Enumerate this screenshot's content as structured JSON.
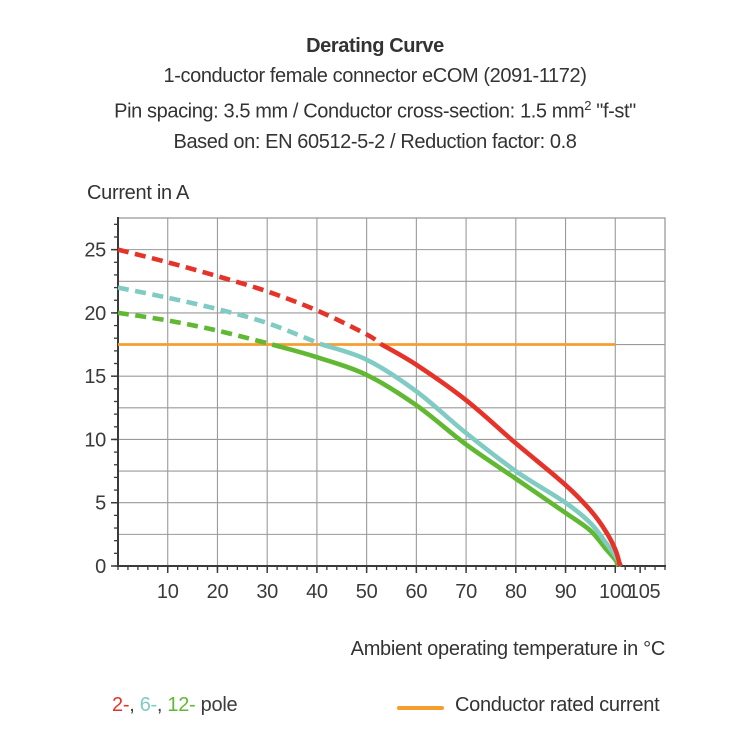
{
  "header": {
    "line1": "Derating Curve",
    "line2": "1-conductor female connector eCOM (2091-1172)",
    "line3_pre": "Pin spacing: 3.5 mm / Conductor cross-section: 1.5 mm",
    "line3_sup": "2",
    "line3_post": " \"f-st\"",
    "line4": "Based on: EN 60512-5-2 / Reduction factor: 0.8"
  },
  "chart_data": {
    "type": "line",
    "title": "Derating Curve",
    "xlabel": "Ambient operating temperature in °C",
    "ylabel": "Current in A",
    "xlim": [
      0,
      110
    ],
    "ylim": [
      0,
      27.5
    ],
    "x_gridline_step": 10,
    "y_gridline_step": 2.5,
    "x_major_ticks": [
      10,
      20,
      30,
      40,
      50,
      60,
      70,
      80,
      90,
      100,
      105
    ],
    "x_tick_labels": [
      "10",
      "20",
      "30",
      "40",
      "50",
      "60",
      "70",
      "80",
      "90",
      "100",
      "105"
    ],
    "x_minor_tick_step": 2,
    "y_major_ticks": [
      0,
      5,
      10,
      15,
      20,
      25
    ],
    "y_tick_labels": [
      "0",
      "5",
      "10",
      "15",
      "20",
      "25"
    ],
    "y_minor_tick_step": 1,
    "grid_color": "#9a9a9a",
    "axis_color": "#3a3a3a",
    "legend_position": "bottom",
    "series": [
      {
        "name": "12-pole",
        "color": "#61b832",
        "style": "dashed-then-solid",
        "solid_from_x": 31,
        "points": [
          [
            0,
            20
          ],
          [
            10,
            19.4
          ],
          [
            20,
            18.6
          ],
          [
            31,
            17.5
          ],
          [
            40,
            16.5
          ],
          [
            50,
            15.1
          ],
          [
            60,
            12.7
          ],
          [
            70,
            9.6
          ],
          [
            80,
            6.9
          ],
          [
            90,
            4.2
          ],
          [
            95,
            2.8
          ],
          [
            98,
            1.4
          ],
          [
            100,
            0.5
          ],
          [
            100.6,
            0
          ]
        ]
      },
      {
        "name": "6-pole",
        "color": "#80cbc3",
        "style": "dashed-then-solid",
        "solid_from_x": 41,
        "points": [
          [
            0,
            22
          ],
          [
            10,
            21.2
          ],
          [
            20,
            20.3
          ],
          [
            30,
            19.2
          ],
          [
            41,
            17.5
          ],
          [
            50,
            16.3
          ],
          [
            60,
            13.8
          ],
          [
            70,
            10.5
          ],
          [
            80,
            7.5
          ],
          [
            90,
            5.0
          ],
          [
            95,
            3.4
          ],
          [
            98,
            1.9
          ],
          [
            100,
            0.8
          ],
          [
            101.2,
            0
          ]
        ]
      },
      {
        "name": "2-pole",
        "color": "#e6332a",
        "style": "dashed-then-solid",
        "solid_from_x": 53,
        "points": [
          [
            0,
            25
          ],
          [
            10,
            24
          ],
          [
            20,
            22.9
          ],
          [
            30,
            21.7
          ],
          [
            40,
            20.2
          ],
          [
            50,
            18.3
          ],
          [
            53,
            17.5
          ],
          [
            60,
            15.9
          ],
          [
            70,
            13.1
          ],
          [
            80,
            9.7
          ],
          [
            90,
            6.4
          ],
          [
            95,
            4.4
          ],
          [
            98,
            2.8
          ],
          [
            100,
            1.3
          ],
          [
            101,
            0
          ]
        ]
      },
      {
        "name": "Conductor rated current",
        "color": "#f59e2f",
        "style": "solid",
        "points": [
          [
            0,
            17.5
          ],
          [
            100,
            17.5
          ]
        ]
      }
    ]
  },
  "legend": {
    "pole_parts": [
      {
        "text": "2-",
        "color": "#e6332a"
      },
      {
        "text": ", ",
        "color": "#3c3c3c"
      },
      {
        "text": "6-",
        "color": "#80cbc3"
      },
      {
        "text": ", ",
        "color": "#3c3c3c"
      },
      {
        "text": "12-",
        "color": "#61b832"
      },
      {
        "text": " pole",
        "color": "#3c3c3c"
      }
    ],
    "rated": {
      "label": "Conductor rated current",
      "swatch_color": "#f59e2f"
    }
  }
}
